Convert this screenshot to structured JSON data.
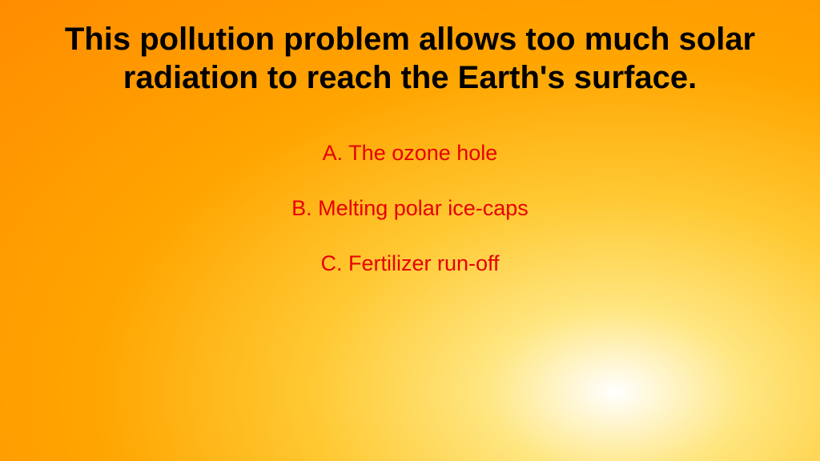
{
  "slide": {
    "question": "This pollution problem allows too much solar radiation to reach the Earth's surface.",
    "answers": [
      "A. The ozone hole",
      "B. Melting polar ice-caps",
      "C. Fertilizer run-off"
    ],
    "styling": {
      "background_gradient": {
        "type": "radial",
        "center": "75% 85%",
        "stops": [
          "#ffffff",
          "#ffe680",
          "#ffc933",
          "#ffa500",
          "#ff8c00"
        ]
      },
      "question_color": "#000000",
      "question_fontsize": 40,
      "question_fontweight": "bold",
      "answer_color": "#e60000",
      "answer_fontsize": 27,
      "font_family": "Comic Sans MS"
    }
  }
}
